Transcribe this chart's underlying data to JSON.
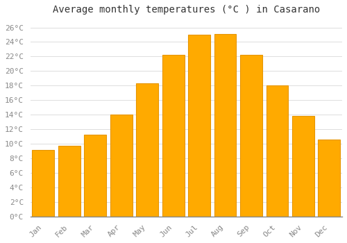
{
  "title": "Average monthly temperatures (°C ) in Casarano",
  "months": [
    "Jan",
    "Feb",
    "Mar",
    "Apr",
    "May",
    "Jun",
    "Jul",
    "Aug",
    "Sep",
    "Oct",
    "Nov",
    "Dec"
  ],
  "values": [
    9.2,
    9.7,
    11.3,
    14.0,
    18.3,
    22.2,
    25.0,
    25.1,
    22.2,
    18.0,
    13.8,
    10.6
  ],
  "bar_color": "#FFAA00",
  "bar_edge_color": "#E69500",
  "background_color": "#FFFFFF",
  "plot_bg_color": "#FFFFFF",
  "grid_color": "#DDDDDD",
  "ylim": [
    0,
    27
  ],
  "ytick_step": 2,
  "title_fontsize": 10,
  "tick_fontsize": 8,
  "tick_color": "#888888",
  "font_family": "monospace",
  "bar_width": 0.85
}
